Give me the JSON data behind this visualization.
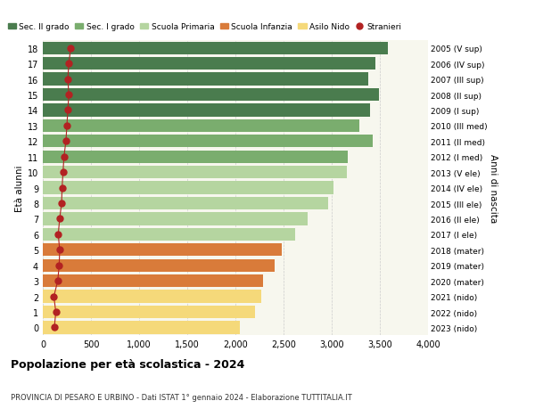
{
  "ages": [
    18,
    17,
    16,
    15,
    14,
    13,
    12,
    11,
    10,
    9,
    8,
    7,
    6,
    5,
    4,
    3,
    2,
    1,
    0
  ],
  "values": [
    3580,
    3450,
    3380,
    3490,
    3400,
    3290,
    3430,
    3170,
    3160,
    3020,
    2960,
    2750,
    2620,
    2480,
    2410,
    2290,
    2270,
    2200,
    2050
  ],
  "stranieri": [
    290,
    270,
    260,
    270,
    260,
    250,
    240,
    220,
    210,
    200,
    195,
    175,
    160,
    175,
    170,
    155,
    115,
    135,
    120
  ],
  "right_labels": [
    "2005 (V sup)",
    "2006 (IV sup)",
    "2007 (III sup)",
    "2008 (II sup)",
    "2009 (I sup)",
    "2010 (III med)",
    "2011 (II med)",
    "2012 (I med)",
    "2013 (V ele)",
    "2014 (IV ele)",
    "2015 (III ele)",
    "2016 (II ele)",
    "2017 (I ele)",
    "2018 (mater)",
    "2019 (mater)",
    "2020 (mater)",
    "2021 (nido)",
    "2022 (nido)",
    "2023 (nido)"
  ],
  "bar_colors": [
    "#4a7c4e",
    "#4a7c4e",
    "#4a7c4e",
    "#4a7c4e",
    "#4a7c4e",
    "#7aad6e",
    "#7aad6e",
    "#7aad6e",
    "#b5d5a0",
    "#b5d5a0",
    "#b5d5a0",
    "#b5d5a0",
    "#b5d5a0",
    "#d97b3a",
    "#d97b3a",
    "#d97b3a",
    "#f5d97a",
    "#f5d97a",
    "#f5d97a"
  ],
  "legend_labels": [
    "Sec. II grado",
    "Sec. I grado",
    "Scuola Primaria",
    "Scuola Infanzia",
    "Asilo Nido",
    "Stranieri"
  ],
  "legend_colors": [
    "#4a7c4e",
    "#7aad6e",
    "#b5d5a0",
    "#d97b3a",
    "#f5d97a",
    "#b22222"
  ],
  "ylabel_left": "Età alunni",
  "ylabel_right": "Anni di nascita",
  "title": "Popolazione per età scolastica - 2024",
  "subtitle": "PROVINCIA DI PESARO E URBINO - Dati ISTAT 1° gennaio 2024 - Elaborazione TUTTITALIA.IT",
  "xlim": [
    0,
    4000
  ],
  "xticks": [
    0,
    500,
    1000,
    1500,
    2000,
    2500,
    3000,
    3500,
    4000
  ],
  "xtick_labels": [
    "0",
    "500",
    "1,000",
    "1,500",
    "2,000",
    "2,500",
    "3,000",
    "3,500",
    "4,000"
  ],
  "bg_color": "#ffffff",
  "plot_bg_color": "#f7f7ee",
  "dot_color": "#b22222",
  "dot_size": 25,
  "bar_height": 0.82
}
